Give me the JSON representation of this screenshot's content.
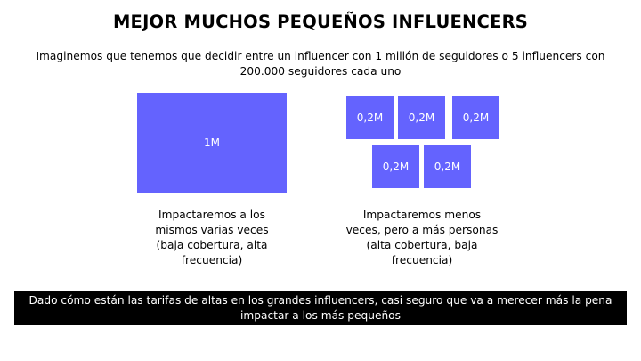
{
  "title": "MEJOR MUCHOS PEQUEÑOS INFLUENCERS",
  "subtitle": "Imaginemos que tenemos que decidir entre un influencer con 1 millón de seguidores o 5 influencers con 200.000 seguidores cada uno",
  "big_box": {
    "label": "1M"
  },
  "small_boxes": [
    {
      "label": "0,2M"
    },
    {
      "label": "0,2M"
    },
    {
      "label": "0,2M"
    },
    {
      "label": "0,2M"
    },
    {
      "label": "0,2M"
    }
  ],
  "captions": {
    "left": "Impactaremos a los mismos varias veces (baja cobertura, alta frecuencia)",
    "right": "Impactaremos menos veces, pero a más personas (alta cobertura, baja frecuencia)"
  },
  "banner": "Dado cómo están las tarifas de altas en los grandes influencers, casi seguro que va a merecer más la pena impactar a los más pequeños",
  "colors": {
    "box": "#6463fe",
    "banner_bg": "#000000"
  }
}
